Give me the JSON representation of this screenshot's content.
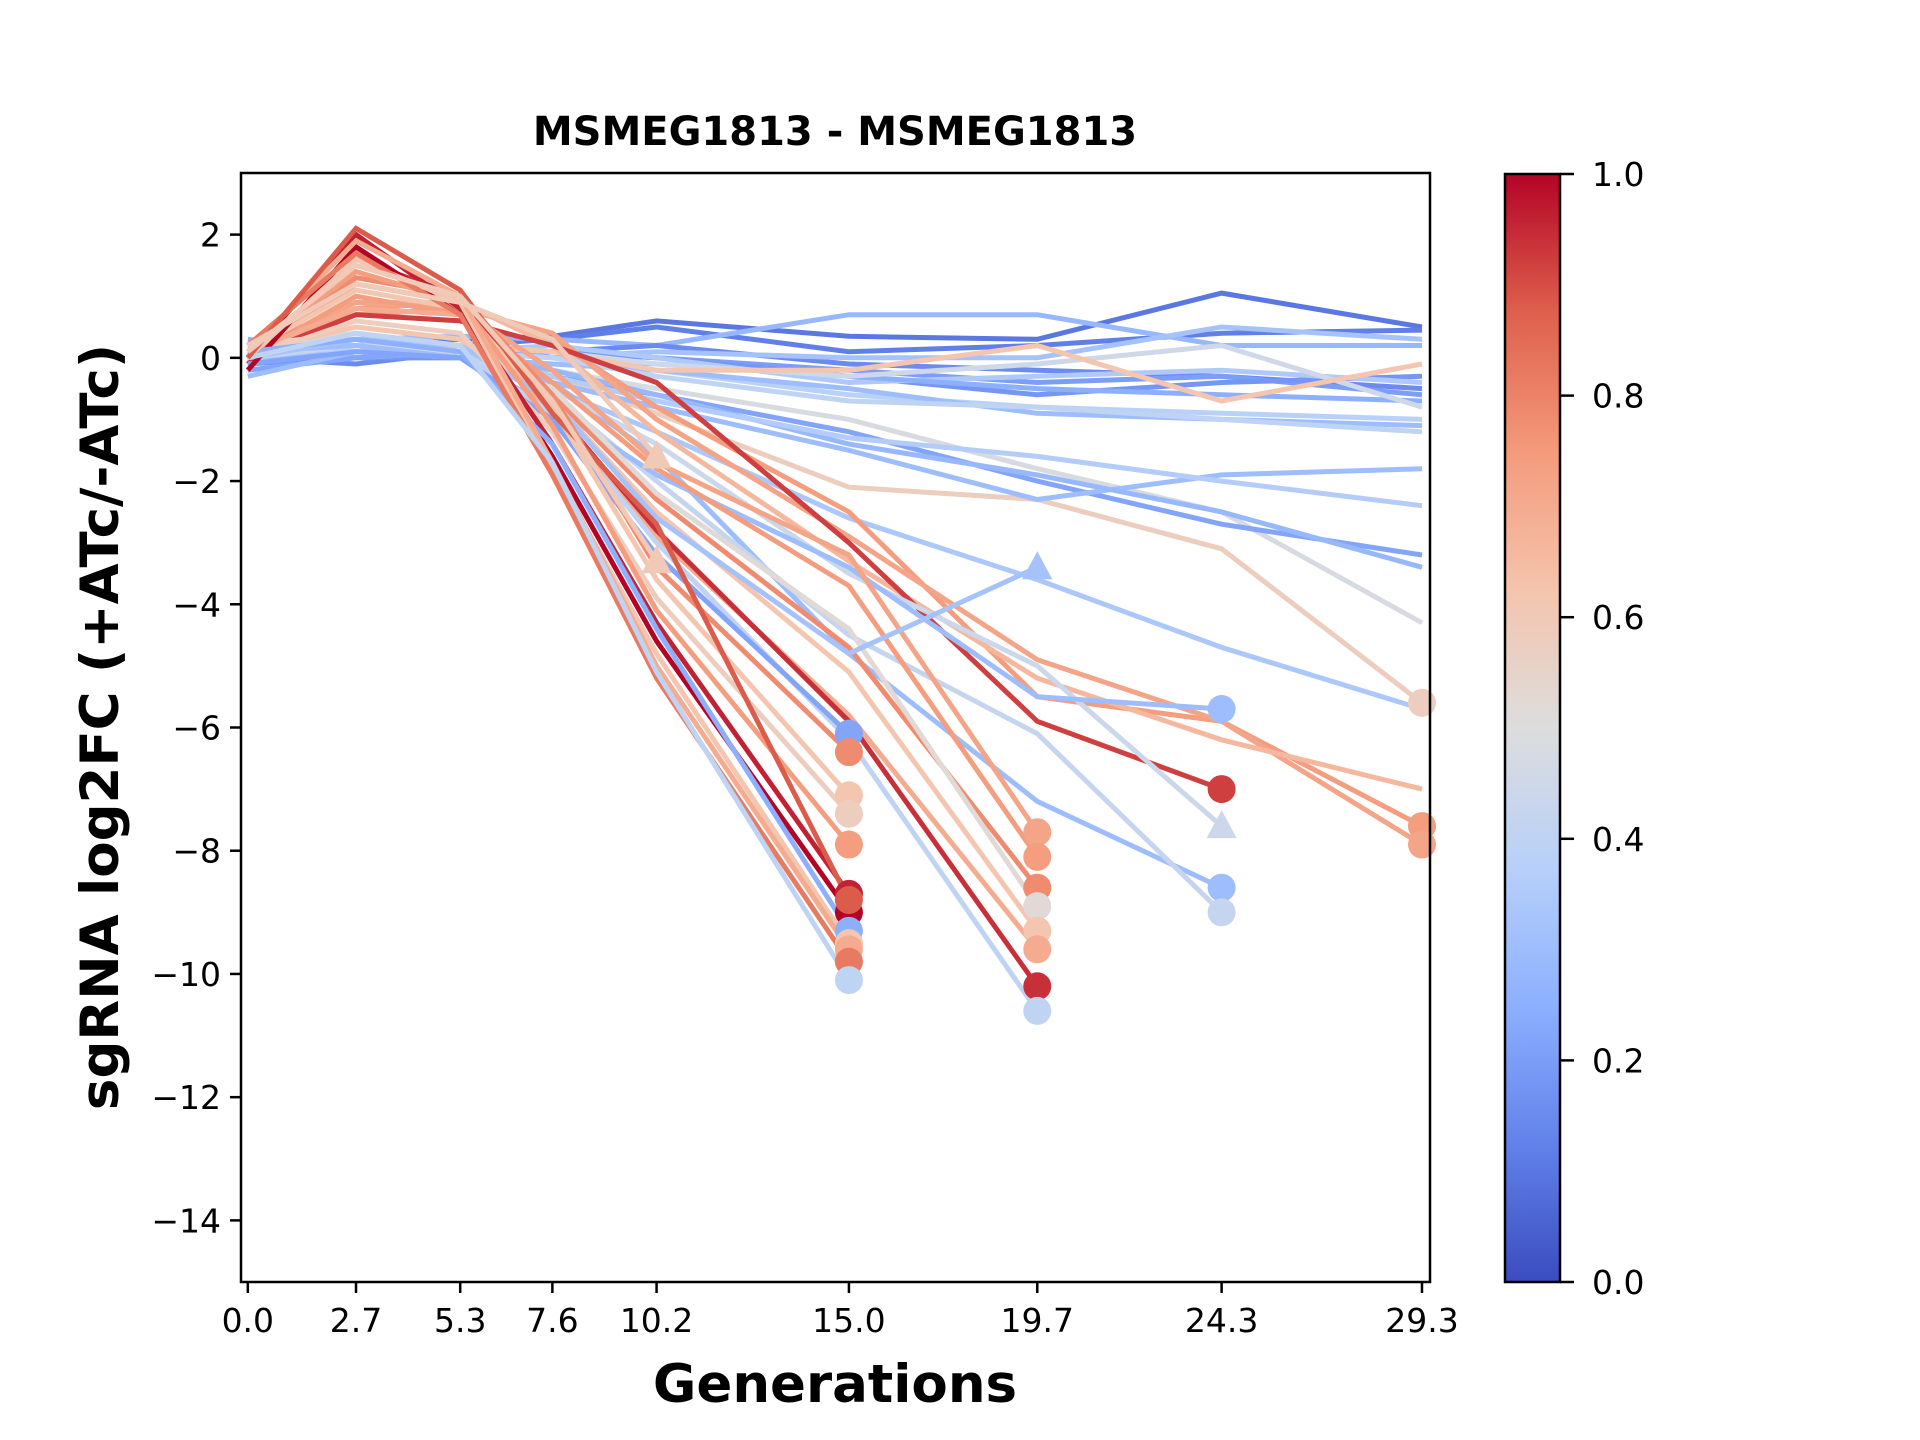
{
  "chart_data": {
    "type": "line",
    "title": "MSMEG1813 - MSMEG1813",
    "xlabel": "Generations",
    "ylabel": "sgRNA log2FC (+ATc/-ATc)",
    "x_ticks": [
      "0.0",
      "2.7",
      "5.3",
      "7.6",
      "10.2",
      "15.0",
      "19.7",
      "24.3",
      "29.3"
    ],
    "x_tick_values": [
      0.0,
      2.7,
      5.3,
      7.6,
      10.2,
      15.0,
      19.7,
      24.3,
      29.3
    ],
    "y_ticks": [
      "2",
      "0",
      "−2",
      "−4",
      "−6",
      "−8",
      "−10",
      "−12",
      "−14"
    ],
    "y_tick_values": [
      2,
      0,
      -2,
      -4,
      -6,
      -8,
      -10,
      -12,
      -14
    ],
    "xlim": [
      -0.17,
      29.5
    ],
    "ylim": [
      -15,
      3
    ],
    "grid": false,
    "colorbar": {
      "colormap": "coolwarm",
      "range": [
        0.0,
        1.0
      ],
      "ticks": [
        "0.0",
        "0.2",
        "0.4",
        "0.6",
        "0.8",
        "1.0"
      ],
      "tick_values": [
        0.0,
        0.2,
        0.4,
        0.6,
        0.8,
        1.0
      ]
    },
    "x": [
      0.0,
      2.7,
      5.3,
      7.6,
      10.2,
      15.0,
      19.7,
      24.3,
      29.3
    ],
    "series": [
      {
        "c": 0.1,
        "values": [
          0.1,
          0.2,
          0.3,
          0.35,
          0.6,
          0.35,
          0.3,
          1.05,
          0.5
        ],
        "end_marker": "none"
      },
      {
        "c": 0.12,
        "values": [
          0.0,
          0.1,
          0.2,
          0.3,
          0.5,
          0.1,
          0.2,
          0.4,
          0.45
        ],
        "end_marker": "none"
      },
      {
        "c": 0.28,
        "values": [
          0.2,
          0.3,
          0.35,
          0.3,
          0.2,
          0.7,
          0.7,
          0.2,
          0.2
        ],
        "end_marker": "none"
      },
      {
        "c": 0.15,
        "values": [
          0.0,
          -0.1,
          0.1,
          0.1,
          0.2,
          -0.1,
          -0.2,
          -0.3,
          -0.5
        ],
        "end_marker": "none"
      },
      {
        "c": 0.2,
        "values": [
          0.1,
          0.0,
          0.0,
          0.1,
          0.0,
          -0.2,
          -0.4,
          -0.3,
          -0.6
        ],
        "end_marker": "none"
      },
      {
        "c": 0.32,
        "values": [
          0.0,
          0.1,
          0.1,
          0.0,
          0.1,
          0.0,
          0.0,
          0.5,
          0.3
        ],
        "end_marker": "none"
      },
      {
        "c": 0.18,
        "values": [
          -0.1,
          0.0,
          0.0,
          0.1,
          0.0,
          -0.3,
          -0.6,
          -0.4,
          -0.3
        ],
        "end_marker": "none"
      },
      {
        "c": 0.35,
        "values": [
          0.2,
          0.2,
          0.1,
          0.2,
          0.0,
          -0.4,
          -0.3,
          -0.2,
          -0.4
        ],
        "end_marker": "none"
      },
      {
        "c": 0.25,
        "values": [
          0.3,
          0.1,
          0.2,
          0.0,
          -0.1,
          -0.3,
          -0.5,
          -0.6,
          -0.7
        ],
        "end_marker": "none"
      },
      {
        "c": 0.38,
        "values": [
          -0.2,
          0.0,
          0.1,
          0.0,
          -0.2,
          -0.6,
          -0.8,
          -0.9,
          -1.0
        ],
        "end_marker": "none"
      },
      {
        "c": 0.3,
        "values": [
          0.0,
          0.2,
          0.0,
          -0.1,
          -0.2,
          -0.5,
          -0.9,
          -1.0,
          -1.1
        ],
        "end_marker": "none"
      },
      {
        "c": 0.4,
        "values": [
          0.1,
          0.2,
          0.1,
          0.0,
          -0.3,
          -0.7,
          -0.8,
          -1.0,
          -1.2
        ],
        "end_marker": "none"
      },
      {
        "c": 0.45,
        "values": [
          0.0,
          0.3,
          0.2,
          0.1,
          -0.1,
          -0.3,
          -0.1,
          0.2,
          -0.8
        ],
        "end_marker": "none"
      },
      {
        "c": 0.62,
        "values": [
          0.0,
          0.1,
          0.2,
          0.1,
          -0.2,
          -0.2,
          0.2,
          -0.7,
          -0.1
        ],
        "end_marker": "none"
      },
      {
        "c": 0.48,
        "values": [
          -0.1,
          0.2,
          0.1,
          -0.2,
          -0.5,
          -1.0,
          -1.8,
          -2.5,
          -4.3
        ],
        "end_marker": "none"
      },
      {
        "c": 0.58,
        "values": [
          0.1,
          0.3,
          0.2,
          -0.3,
          -0.9,
          -2.1,
          -2.3,
          -3.1,
          -5.6
        ],
        "end_marker": "circle"
      },
      {
        "c": 0.22,
        "values": [
          -0.2,
          0.0,
          0.1,
          -0.3,
          -0.6,
          -1.2,
          -2.0,
          -2.7,
          -3.2
        ],
        "end_marker": "none"
      },
      {
        "c": 0.3,
        "values": [
          0.0,
          0.1,
          0.0,
          -0.4,
          -0.8,
          -1.5,
          -2.3,
          -1.9,
          -1.8
        ],
        "end_marker": "none"
      },
      {
        "c": 0.28,
        "values": [
          0.1,
          0.2,
          0.1,
          -0.2,
          -0.6,
          -1.4,
          -1.9,
          -2.5,
          -3.4
        ],
        "end_marker": "none"
      },
      {
        "c": 0.36,
        "values": [
          0.2,
          0.1,
          0.1,
          -0.3,
          -0.7,
          -1.3,
          -1.6,
          -2.0,
          -2.4
        ],
        "end_marker": "none"
      },
      {
        "c": 0.34,
        "values": [
          0.0,
          0.2,
          0.0,
          -0.5,
          -1.2,
          -2.6,
          -3.6,
          -4.7,
          -5.7
        ],
        "end_marker": "none"
      },
      {
        "c": 0.74,
        "values": [
          0.0,
          0.8,
          0.9,
          0.3,
          -0.8,
          -2.5,
          -5.5,
          -5.9,
          -7.6
        ],
        "end_marker": "circle"
      },
      {
        "c": 0.72,
        "values": [
          0.1,
          0.7,
          0.8,
          0.4,
          -1.0,
          -2.9,
          -4.9,
          -5.9,
          -7.9
        ],
        "end_marker": "circle"
      },
      {
        "c": 0.66,
        "values": [
          0.0,
          0.9,
          0.9,
          0.2,
          -1.2,
          -3.3,
          -5.2,
          -6.2,
          -7.0
        ],
        "end_marker": "none"
      },
      {
        "c": 0.92,
        "values": [
          0.0,
          0.7,
          0.6,
          0.2,
          -0.4,
          -3.0,
          -5.9,
          -7.0
        ],
        "end_marker": "circle"
      },
      {
        "c": 0.3,
        "values": [
          -0.3,
          0.1,
          0.1,
          -0.4,
          -1.6,
          -4.8,
          -7.2,
          -8.6
        ],
        "end_marker": "circle"
      },
      {
        "c": 0.42,
        "values": [
          0.0,
          0.2,
          0.1,
          -0.6,
          -2.0,
          -4.5,
          -6.1,
          -9.0
        ],
        "end_marker": "circle"
      },
      {
        "c": 0.44,
        "values": [
          0.2,
          0.3,
          0.0,
          -0.5,
          -1.4,
          -3.5,
          -5.0,
          -7.6
        ],
        "end_marker": "triangle"
      },
      {
        "c": 0.3,
        "values": [
          0.1,
          0.2,
          0.0,
          -0.8,
          -1.9,
          -3.4,
          -5.5,
          -5.7
        ],
        "end_marker": "circle"
      },
      {
        "c": 0.72,
        "values": [
          0.1,
          0.9,
          0.8,
          -0.2,
          -1.7,
          -3.2,
          -7.7
        ],
        "end_marker": "circle"
      },
      {
        "c": 0.74,
        "values": [
          0.0,
          1.0,
          0.7,
          -0.4,
          -1.8,
          -3.7,
          -8.1
        ],
        "end_marker": "circle"
      },
      {
        "c": 0.78,
        "values": [
          0.0,
          1.2,
          0.9,
          -0.6,
          -2.3,
          -4.7,
          -8.6
        ],
        "end_marker": "circle"
      },
      {
        "c": 0.52,
        "values": [
          0.2,
          0.4,
          0.2,
          -0.5,
          -2.2,
          -4.4,
          -8.9
        ],
        "end_marker": "circle"
      },
      {
        "c": 0.62,
        "values": [
          0.1,
          0.5,
          0.3,
          -0.7,
          -2.5,
          -5.1,
          -9.3
        ],
        "end_marker": "circle"
      },
      {
        "c": 0.7,
        "values": [
          0.1,
          0.8,
          0.7,
          -0.9,
          -2.9,
          -5.8,
          -9.6
        ],
        "end_marker": "circle"
      },
      {
        "c": 0.94,
        "values": [
          -0.1,
          1.6,
          1.0,
          -0.8,
          -2.8,
          -5.9,
          -10.2
        ],
        "end_marker": "circle"
      },
      {
        "c": 0.4,
        "values": [
          0.0,
          0.3,
          0.1,
          -0.9,
          -3.0,
          -6.2,
          -10.6
        ],
        "end_marker": "circle"
      },
      {
        "c": 0.32,
        "values": [
          0.0,
          0.3,
          0.2,
          -0.7,
          -2.6,
          -4.8,
          -3.4
        ],
        "end_marker": "triangle"
      },
      {
        "c": 0.22,
        "values": [
          -0.1,
          0.1,
          0.0,
          -1.0,
          -3.2,
          -6.1
        ],
        "end_marker": "circle"
      },
      {
        "c": 0.78,
        "values": [
          0.0,
          1.3,
          1.0,
          -0.6,
          -3.4,
          -6.4
        ],
        "end_marker": "circle"
      },
      {
        "c": 0.62,
        "values": [
          0.1,
          1.1,
          0.8,
          -0.8,
          -3.6,
          -7.1
        ],
        "end_marker": "circle"
      },
      {
        "c": 0.58,
        "values": [
          0.0,
          0.6,
          0.4,
          -1.2,
          -3.9,
          -7.4
        ],
        "end_marker": "circle"
      },
      {
        "c": 0.74,
        "values": [
          0.1,
          1.4,
          0.9,
          -1.1,
          -4.1,
          -7.9
        ],
        "end_marker": "circle"
      },
      {
        "c": 0.96,
        "values": [
          0.0,
          2.0,
          0.8,
          -1.4,
          -4.3,
          -8.7
        ],
        "end_marker": "circle"
      },
      {
        "c": 1.0,
        "values": [
          -0.2,
          1.8,
          0.7,
          -1.6,
          -4.6,
          -9.0
        ],
        "end_marker": "circle"
      },
      {
        "c": 0.25,
        "values": [
          0.1,
          0.3,
          0.1,
          -1.4,
          -4.4,
          -9.3
        ],
        "end_marker": "circle"
      },
      {
        "c": 0.62,
        "values": [
          0.0,
          1.6,
          0.9,
          -1.8,
          -4.8,
          -9.5
        ],
        "end_marker": "circle"
      },
      {
        "c": 0.7,
        "values": [
          0.1,
          1.9,
          1.0,
          -1.7,
          -5.0,
          -9.6
        ],
        "end_marker": "circle"
      },
      {
        "c": 0.82,
        "values": [
          0.2,
          1.7,
          0.7,
          -1.9,
          -5.2,
          -9.8
        ],
        "end_marker": "circle"
      },
      {
        "c": 0.4,
        "values": [
          0.0,
          0.4,
          0.2,
          -1.7,
          -5.1,
          -10.1
        ],
        "end_marker": "circle"
      },
      {
        "c": 0.88,
        "values": [
          0.0,
          2.1,
          1.1,
          -0.9,
          -2.7,
          -8.8
        ],
        "end_marker": "circle"
      },
      {
        "c": 0.6,
        "values": [
          0.2,
          1.2,
          0.9,
          0.3,
          -1.6
        ],
        "end_marker": "triangle"
      },
      {
        "c": 0.6,
        "values": [
          0.1,
          1.5,
          1.0,
          -0.7,
          -3.3
        ],
        "end_marker": "triangle"
      }
    ]
  }
}
